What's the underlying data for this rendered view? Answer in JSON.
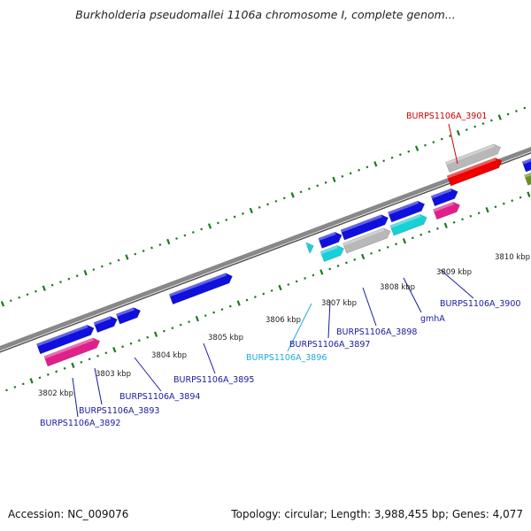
{
  "header": {
    "title": "Burkholderia pseudomallei 1106a chromosome I, complete genom..."
  },
  "footer": {
    "accession": "Accession: NC_009076",
    "summary": "Topology: circular; Length: 3,988,455 bp; Genes: 4,077"
  },
  "colors": {
    "backbone": "#888888",
    "tick": "#1a7a1a",
    "gene_blue": "#1010dd",
    "gene_red": "#ee0000",
    "gene_gray": "#b8b8b8",
    "gene_pink": "#e0208a",
    "gene_cyan": "#18d0d8",
    "gene_olive": "#6b8e23",
    "label_blue": "#1a1aa0",
    "label_red": "#cc0000",
    "label_cyan": "#22aadd"
  },
  "kbp_labels": [
    "3802 kbp",
    "3803 kbp",
    "3804 kbp",
    "3805 kbp",
    "3806 kbp",
    "3807 kbp",
    "3808 kbp",
    "3809 kbp",
    "3810 kbp"
  ],
  "gene_labels": [
    {
      "text": "BURPS1106A_3901",
      "color": "red"
    },
    {
      "text": "BURPS1106A_3900",
      "color": "blue"
    },
    {
      "text": "gmhA",
      "color": "blue"
    },
    {
      "text": "BURPS1106A_3898",
      "color": "blue"
    },
    {
      "text": "BURPS1106A_3897",
      "color": "blue"
    },
    {
      "text": "BURPS1106A_3896",
      "color": "cyan"
    },
    {
      "text": "BURPS1106A_3895",
      "color": "blue"
    },
    {
      "text": "BURPS1106A_3894",
      "color": "blue"
    },
    {
      "text": "BURPS1106A_3893",
      "color": "blue"
    },
    {
      "text": "BURPS1106A_3892",
      "color": "blue"
    }
  ]
}
